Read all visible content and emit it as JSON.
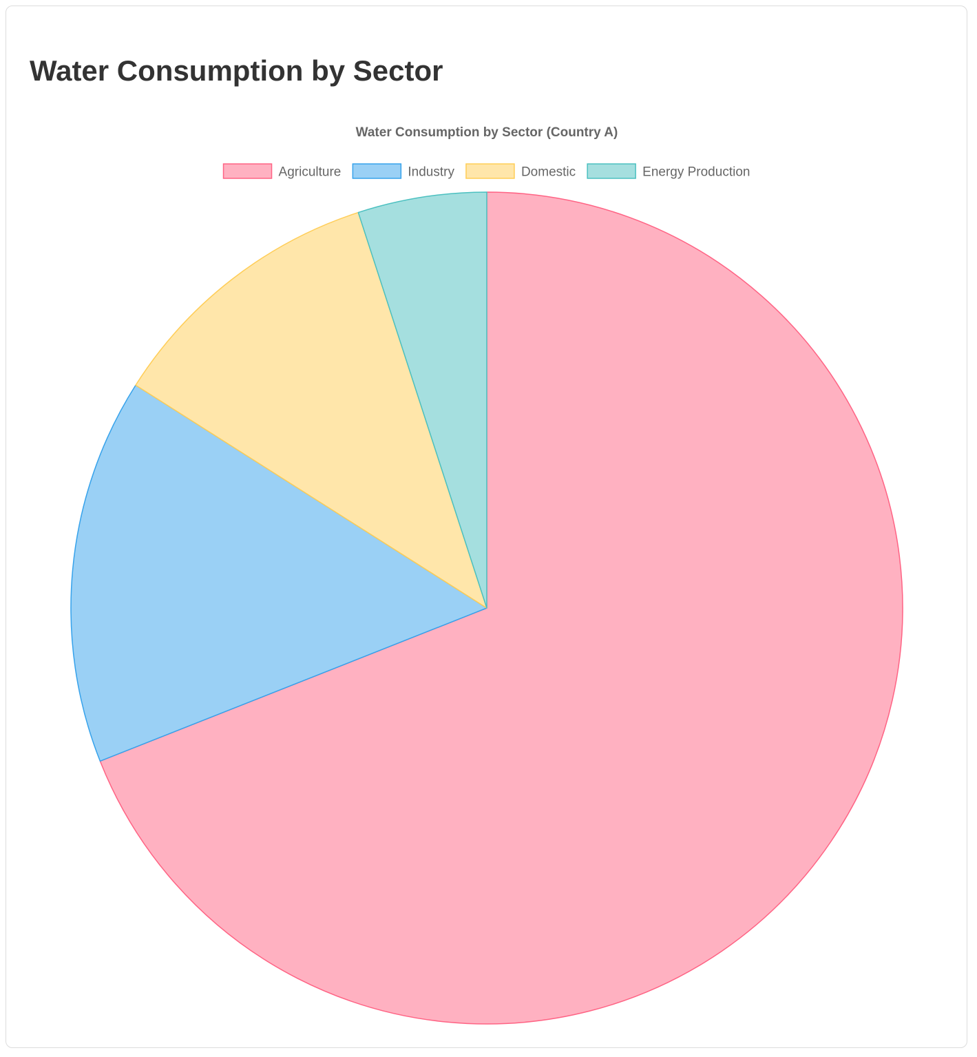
{
  "page": {
    "title": "Water Consumption by Sector"
  },
  "chart_data": {
    "type": "pie",
    "title": "Water Consumption by Sector (Country A)",
    "legend_position": "top",
    "categories": [
      "Agriculture",
      "Industry",
      "Domestic",
      "Energy Production"
    ],
    "values": [
      69,
      15,
      11,
      5
    ],
    "colors": {
      "fill": [
        "#ffb1c1",
        "#9ad0f5",
        "#ffe6aa",
        "#a5dfdf"
      ],
      "border": [
        "#ff6384",
        "#36a2eb",
        "#ffcd56",
        "#4bc0c0"
      ]
    }
  }
}
